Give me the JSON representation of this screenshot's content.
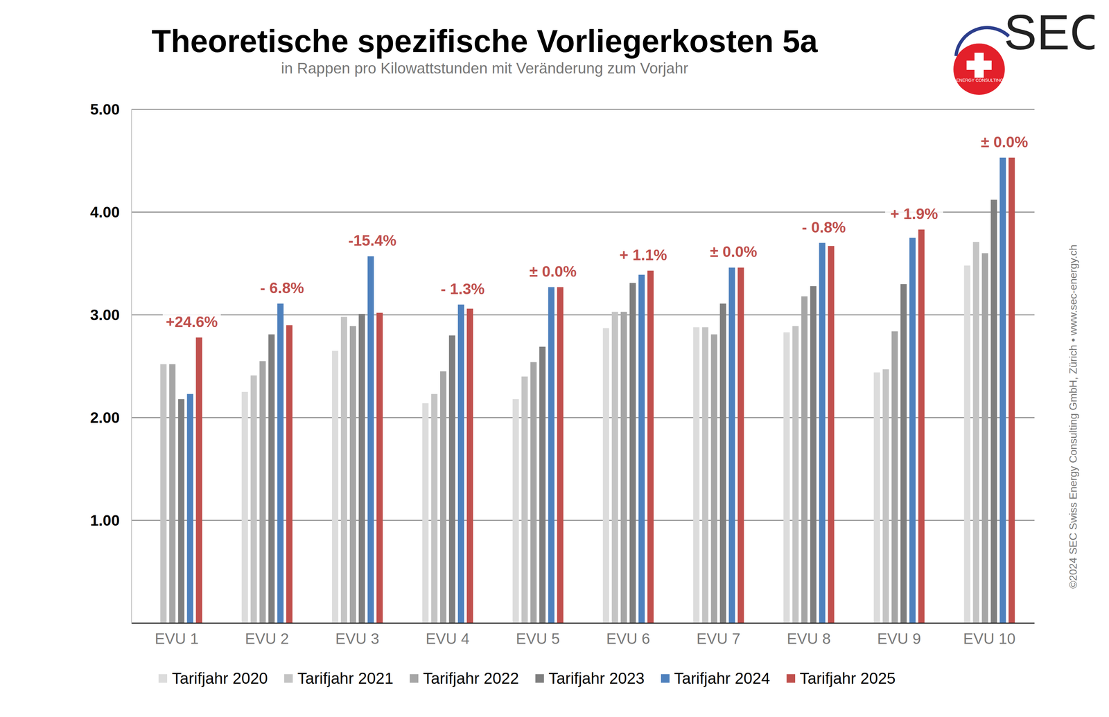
{
  "chart_data": {
    "type": "bar",
    "title": "Theoretische spezifische Vorliegerkosten 5a",
    "subtitle": "in Rappen pro Kilowattstunden mit Veränderung zum Vorjahr",
    "categories": [
      "EVU 1",
      "EVU 2",
      "EVU 3",
      "EVU 4",
      "EVU 5",
      "EVU 6",
      "EVU 7",
      "EVU 8",
      "EVU 9",
      "EVU 10"
    ],
    "series": [
      {
        "name": "Tarifjahr 2020",
        "color": "#dcdcdc",
        "values": [
          null,
          2.25,
          2.65,
          2.14,
          2.18,
          2.87,
          2.88,
          2.83,
          2.44,
          3.48
        ]
      },
      {
        "name": "Tarifjahr 2021",
        "color": "#c4c4c4",
        "values": [
          2.52,
          2.41,
          2.98,
          2.23,
          2.4,
          3.03,
          2.88,
          2.89,
          2.47,
          3.71
        ]
      },
      {
        "name": "Tarifjahr 2022",
        "color": "#a6a6a6",
        "values": [
          2.52,
          2.55,
          2.89,
          2.45,
          2.54,
          3.03,
          2.81,
          3.18,
          2.84,
          3.6
        ]
      },
      {
        "name": "Tarifjahr 2023",
        "color": "#7f7f7f",
        "values": [
          2.18,
          2.81,
          3.01,
          2.8,
          2.69,
          3.31,
          3.11,
          3.28,
          3.3,
          4.12
        ]
      },
      {
        "name": "Tarifjahr 2024",
        "color": "#4f81bd",
        "values": [
          2.23,
          3.11,
          3.57,
          3.1,
          3.27,
          3.39,
          3.46,
          3.7,
          3.75,
          4.53
        ]
      },
      {
        "name": "Tarifjahr 2025",
        "color": "#c0504d",
        "values": [
          2.78,
          2.9,
          3.02,
          3.06,
          3.27,
          3.43,
          3.46,
          3.67,
          3.83,
          4.53
        ]
      }
    ],
    "annotations": [
      "+24.6%",
      "- 6.8%",
      "-15.4%",
      "- 1.3%",
      "± 0.0%",
      "+ 1.1%",
      "± 0.0%",
      "- 0.8%",
      "+ 1.9%",
      "± 0.0%"
    ],
    "ylim": [
      0,
      5
    ],
    "yticks": [
      {
        "value": 1,
        "label": "1.00"
      },
      {
        "value": 2,
        "label": "2.00"
      },
      {
        "value": 3,
        "label": "3.00"
      },
      {
        "value": 4,
        "label": "4.00"
      },
      {
        "value": 5,
        "label": "5.00"
      }
    ],
    "grid": true,
    "legend": "bottom",
    "logo": {
      "text": "SEC",
      "subtext": "SWISS ENERGY CONSULTING GmbH"
    },
    "copyright": "©2024 SEC Swiss Energy Consulting GmbH, Zürich • www.sec-energy.ch"
  }
}
